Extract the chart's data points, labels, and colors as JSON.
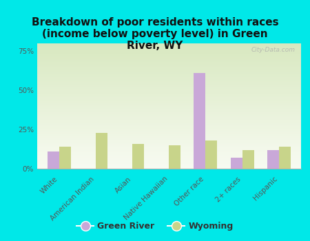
{
  "title": "Breakdown of poor residents within races\n(income below poverty level) in Green\nRiver, WY",
  "categories": [
    "White",
    "American Indian",
    "Asian",
    "Native Hawaiian",
    "Other race",
    "2+ races",
    "Hispanic"
  ],
  "green_river": [
    11,
    0,
    0,
    0,
    61,
    7,
    12
  ],
  "wyoming": [
    14,
    23,
    16,
    15,
    18,
    12,
    14
  ],
  "green_river_color": "#c9a8d8",
  "wyoming_color": "#c8d48a",
  "background_color": "#00e8e8",
  "plot_bg_top": "#d8e8c0",
  "plot_bg_bottom": "#f8fbf2",
  "ylim": [
    0,
    80
  ],
  "yticks": [
    0,
    25,
    50,
    75
  ],
  "ytick_labels": [
    "0%",
    "25%",
    "50%",
    "75%"
  ],
  "bar_width": 0.32,
  "legend_labels": [
    "Green River",
    "Wyoming"
  ],
  "watermark": "City-Data.com",
  "title_fontsize": 11,
  "tick_fontsize": 7.5,
  "legend_fontsize": 9
}
